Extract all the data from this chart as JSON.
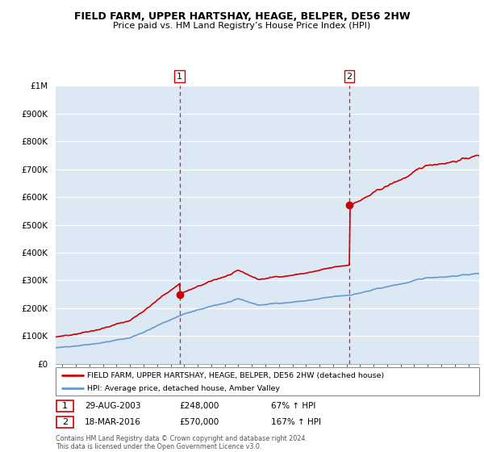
{
  "title1": "FIELD FARM, UPPER HARTSHAY, HEAGE, BELPER, DE56 2HW",
  "title2": "Price paid vs. HM Land Registry’s House Price Index (HPI)",
  "ylim": [
    0,
    1000000
  ],
  "yticks": [
    0,
    100000,
    200000,
    300000,
    400000,
    500000,
    600000,
    700000,
    800000,
    900000,
    1000000
  ],
  "ytick_labels": [
    "£0",
    "£100K",
    "£200K",
    "£300K",
    "£400K",
    "£500K",
    "£600K",
    "£700K",
    "£800K",
    "£900K",
    "£1M"
  ],
  "xlim_start": 1994.5,
  "xlim_end": 2025.8,
  "plot_bg_color": "#dce9f5",
  "grid_color": "#ffffff",
  "legend_label_red": "FIELD FARM, UPPER HARTSHAY, HEAGE, BELPER, DE56 2HW (detached house)",
  "legend_label_blue": "HPI: Average price, detached house, Amber Valley",
  "sale1_date": "29-AUG-2003",
  "sale1_price": 248000,
  "sale1_hpi": "67% ↑ HPI",
  "sale2_date": "18-MAR-2016",
  "sale2_price": 570000,
  "sale2_hpi": "167% ↑ HPI",
  "footer": "Contains HM Land Registry data © Crown copyright and database right 2024.\nThis data is licensed under the Open Government Licence v3.0.",
  "red_color": "#cc0000",
  "blue_color": "#6699cc",
  "sale1_x": 2003.66,
  "sale2_x": 2016.21
}
